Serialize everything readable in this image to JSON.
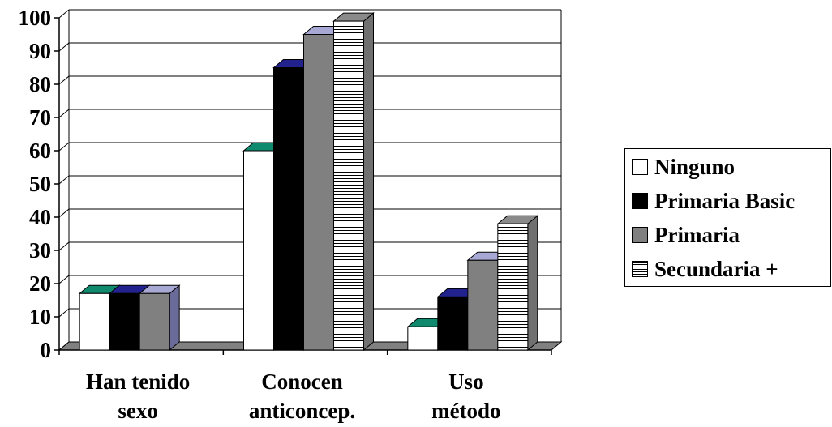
{
  "chart_data": {
    "type": "bar",
    "categories": [
      [
        "Han tenido",
        "sexo"
      ],
      [
        "Conocen",
        "anticoncep."
      ],
      [
        "Uso",
        "método"
      ]
    ],
    "series": [
      {
        "name": "Ninguno",
        "values": [
          17,
          60,
          7
        ],
        "color": "#ffffff",
        "top_color": "#0f8a6e",
        "side_color": "#e8e8e8",
        "pattern": "solid"
      },
      {
        "name": "Primaria Basic",
        "values": [
          17,
          85,
          16
        ],
        "color": "#000000",
        "top_color": "#22228e",
        "side_color": "#1a1a1a",
        "pattern": "solid"
      },
      {
        "name": "Primaria",
        "values": [
          17,
          95,
          27
        ],
        "color": "#808080",
        "top_color": "#a8a8d4",
        "side_color": "#6b6b9a",
        "pattern": "solid"
      },
      {
        "name": "Secundaria +",
        "values": [
          null,
          99,
          38
        ],
        "color": "#ffffff",
        "top_color": "#8a8a8a",
        "side_color": "#707070",
        "pattern": "horizontal-stripes"
      }
    ],
    "yticks": [
      "0",
      "10",
      "20",
      "30",
      "40",
      "50",
      "60",
      "70",
      "80",
      "90",
      "100"
    ],
    "ylim": [
      0,
      100
    ],
    "grid": true,
    "legend_position": "right",
    "title": "",
    "xlabel": "",
    "ylabel": ""
  }
}
